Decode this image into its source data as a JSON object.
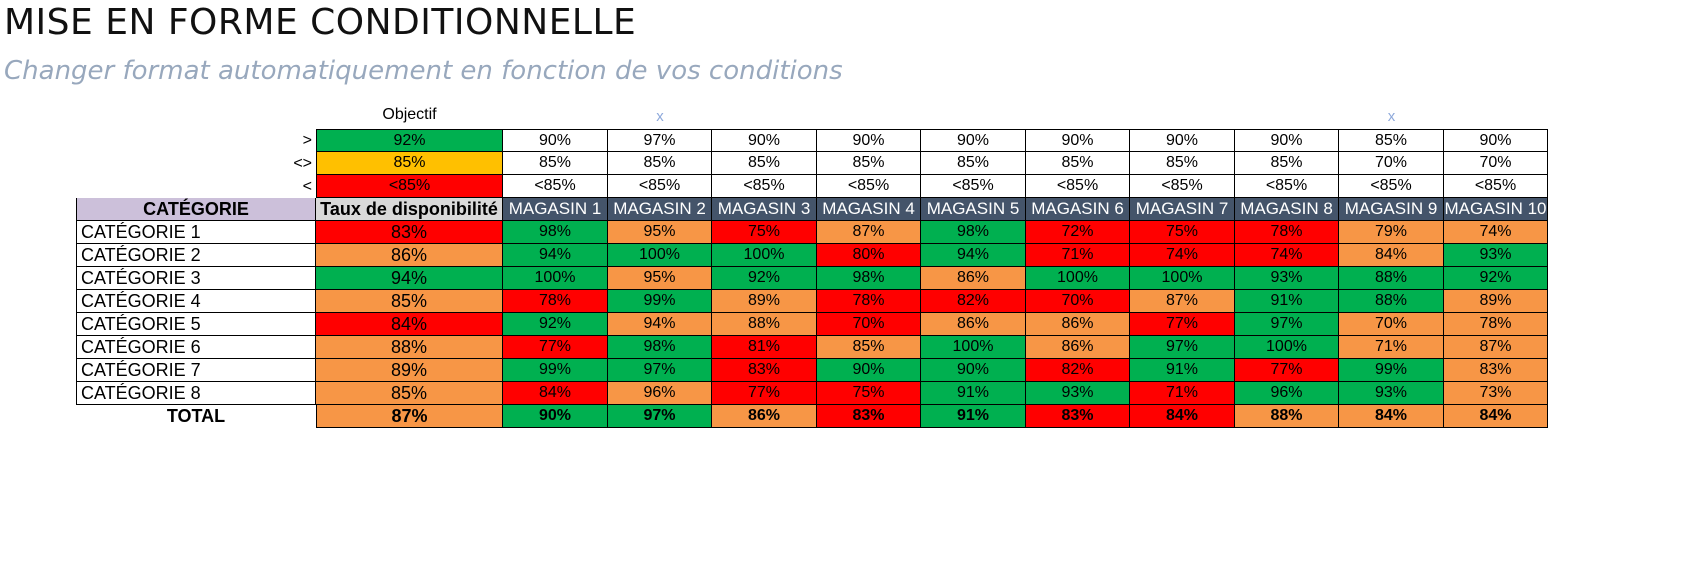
{
  "title": "MISE EN FORME CONDITIONNELLE",
  "subtitle": "Changer format automatiquement en fonction de vos conditions",
  "colors": {
    "green": "#00b050",
    "orange": "#f79646",
    "red": "#ff0000",
    "yellow": "#ffc000",
    "header_store": "#44546a",
    "header_category": "#ccc0da"
  },
  "objective_label": "Objectif",
  "column_marks": [
    "",
    "x",
    "",
    "",
    "",
    "",
    "",
    "",
    "x",
    ""
  ],
  "thresholds": {
    "symbols": [
      ">",
      "<>",
      "<"
    ],
    "objective": [
      "92%",
      "85%",
      "<85%"
    ],
    "stores": [
      [
        "90%",
        "97%",
        "90%",
        "90%",
        "90%",
        "90%",
        "90%",
        "90%",
        "85%",
        "90%"
      ],
      [
        "85%",
        "85%",
        "85%",
        "85%",
        "85%",
        "85%",
        "85%",
        "85%",
        "70%",
        "70%"
      ],
      [
        "<85%",
        "<85%",
        "<85%",
        "<85%",
        "<85%",
        "<85%",
        "<85%",
        "<85%",
        "<85%",
        "<85%"
      ]
    ]
  },
  "headers": {
    "category": "CATÉGORIE",
    "rate": "Taux de disponibilité",
    "stores": [
      "MAGASIN 1",
      "MAGASIN 2",
      "MAGASIN 3",
      "MAGASIN 4",
      "MAGASIN 5",
      "MAGASIN 6",
      "MAGASIN 7",
      "MAGASIN 8",
      "MAGASIN 9",
      "MAGASIN 10"
    ]
  },
  "rows": [
    {
      "name": "CATÉGORIE 1",
      "rate": "83%",
      "values": [
        "98%",
        "95%",
        "75%",
        "87%",
        "98%",
        "72%",
        "75%",
        "78%",
        "79%",
        "74%"
      ]
    },
    {
      "name": "CATÉGORIE 2",
      "rate": "86%",
      "values": [
        "94%",
        "100%",
        "100%",
        "80%",
        "94%",
        "71%",
        "74%",
        "74%",
        "84%",
        "93%"
      ]
    },
    {
      "name": "CATÉGORIE 3",
      "rate": "94%",
      "values": [
        "100%",
        "95%",
        "92%",
        "98%",
        "86%",
        "100%",
        "100%",
        "93%",
        "88%",
        "92%"
      ]
    },
    {
      "name": "CATÉGORIE 4",
      "rate": "85%",
      "values": [
        "78%",
        "99%",
        "89%",
        "78%",
        "82%",
        "70%",
        "87%",
        "91%",
        "88%",
        "89%"
      ]
    },
    {
      "name": "CATÉGORIE 5",
      "rate": "84%",
      "values": [
        "92%",
        "94%",
        "88%",
        "70%",
        "86%",
        "86%",
        "77%",
        "97%",
        "70%",
        "78%"
      ]
    },
    {
      "name": "CATÉGORIE 6",
      "rate": "88%",
      "values": [
        "77%",
        "98%",
        "81%",
        "85%",
        "100%",
        "86%",
        "97%",
        "100%",
        "71%",
        "87%"
      ]
    },
    {
      "name": "CATÉGORIE 7",
      "rate": "89%",
      "values": [
        "99%",
        "97%",
        "83%",
        "90%",
        "90%",
        "82%",
        "91%",
        "77%",
        "99%",
        "83%"
      ]
    },
    {
      "name": "CATÉGORIE 8",
      "rate": "85%",
      "values": [
        "84%",
        "96%",
        "77%",
        "75%",
        "91%",
        "93%",
        "71%",
        "96%",
        "93%",
        "73%"
      ]
    }
  ],
  "total": {
    "label": "TOTAL",
    "rate": "87%",
    "values": [
      "90%",
      "97%",
      "86%",
      "83%",
      "91%",
      "83%",
      "84%",
      "88%",
      "84%",
      "84%"
    ]
  }
}
